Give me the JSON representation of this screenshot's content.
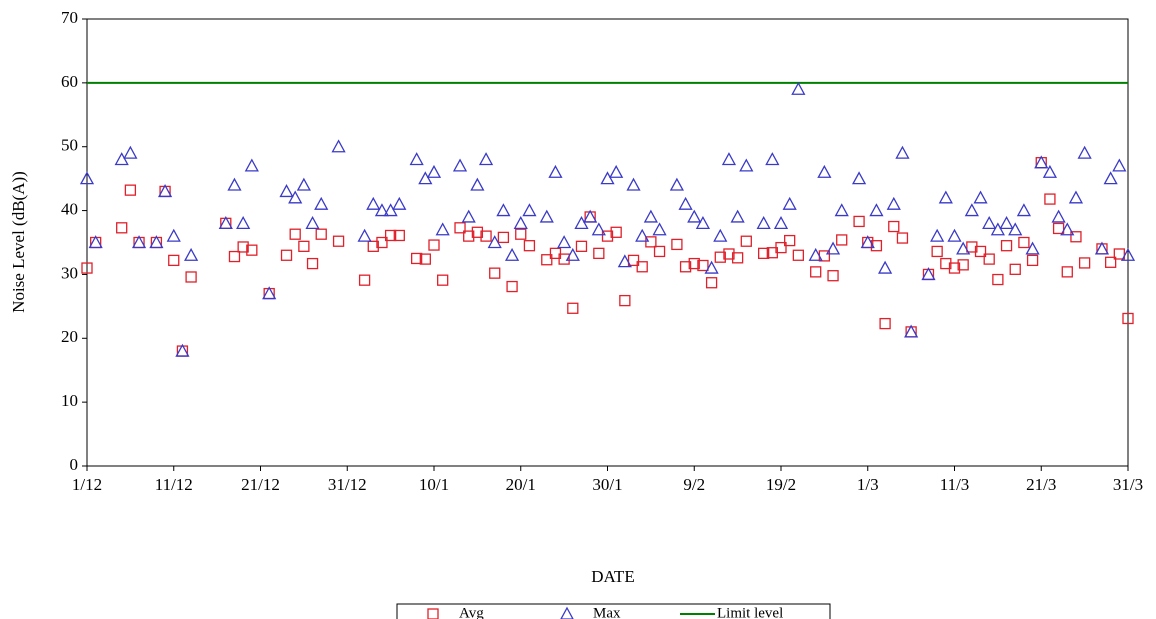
{
  "chart_data": {
    "type": "scatter",
    "x_label": "DATE",
    "y_label": "Noise Level (dB(A))",
    "categories": [
      "1/12",
      null,
      null,
      null,
      null,
      null,
      null,
      null,
      null,
      null,
      "11/12",
      null,
      null,
      null,
      null,
      null,
      null,
      null,
      null,
      null,
      "21/12",
      null,
      null,
      null,
      null,
      null,
      null,
      null,
      null,
      null,
      "31/12",
      null,
      null,
      null,
      null,
      null,
      null,
      null,
      null,
      null,
      "10/1",
      null,
      null,
      null,
      null,
      null,
      null,
      null,
      null,
      null,
      "20/1",
      null,
      null,
      null,
      null,
      null,
      null,
      null,
      null,
      null,
      "30/1",
      null,
      null,
      null,
      null,
      null,
      null,
      null,
      null,
      null,
      "9/2",
      null,
      null,
      null,
      null,
      null,
      null,
      null,
      null,
      null,
      "19/2",
      null,
      null,
      null,
      null,
      null,
      null,
      null,
      null,
      null,
      "1/3",
      null,
      null,
      null,
      null,
      null,
      null,
      null,
      null,
      null,
      "11/3",
      null,
      null,
      null,
      null,
      null,
      null,
      null,
      null,
      null,
      "21/3",
      null,
      null,
      null,
      null,
      null,
      null,
      null,
      null,
      null,
      "31/3"
    ],
    "series": [
      {
        "name": "Avg",
        "color": "#e0202a",
        "marker": "square",
        "values": [
          31,
          35,
          null,
          null,
          37.3,
          43.2,
          35,
          null,
          35,
          43,
          32.2,
          18,
          29.6,
          null,
          null,
          null,
          38,
          32.8,
          34.3,
          33.8,
          null,
          27,
          null,
          33,
          36.3,
          34.4,
          31.7,
          36.3,
          null,
          35.2,
          null,
          null,
          29.1,
          34.4,
          35,
          36.1,
          36.1,
          null,
          32.5,
          32.4,
          34.6,
          29.1,
          null,
          37.3,
          36,
          36.6,
          36,
          30.2,
          35.8,
          28.1,
          36.3,
          34.5,
          null,
          32.3,
          33.3,
          32.4,
          24.7,
          34.4,
          39,
          33.3,
          36,
          36.6,
          25.9,
          32.2,
          31.2,
          35.1,
          33.6,
          null,
          34.7,
          31.2,
          31.7,
          31.4,
          28.7,
          32.7,
          33.2,
          32.6,
          35.2,
          null,
          33.3,
          33.4,
          34.2,
          35.3,
          33,
          null,
          30.4,
          32.9,
          29.8,
          35.4,
          null,
          38.3,
          35,
          34.5,
          22.3,
          37.5,
          35.7,
          21,
          null,
          30,
          33.6,
          31.7,
          31,
          31.5,
          34.3,
          33.6,
          32.4,
          29.2,
          34.5,
          30.8,
          35,
          32.2,
          47.5,
          41.8,
          37.2,
          30.4,
          35.9,
          31.8,
          null,
          34,
          31.9,
          33.2,
          23.1
        ]
      },
      {
        "name": "Max",
        "color": "#3a3ac8",
        "marker": "triangle",
        "values": [
          45,
          35,
          null,
          null,
          48,
          49,
          35,
          null,
          35,
          43,
          36,
          18,
          33,
          null,
          null,
          null,
          38,
          44,
          38,
          47,
          null,
          27,
          null,
          43,
          42,
          44,
          38,
          41,
          null,
          50,
          null,
          null,
          36,
          41,
          40,
          40,
          41,
          null,
          48,
          45,
          46,
          37,
          null,
          47,
          39,
          44,
          48,
          35,
          40,
          33,
          38,
          40,
          null,
          39,
          46,
          35,
          33,
          38,
          39,
          37,
          45,
          46,
          32,
          44,
          36,
          39,
          37,
          null,
          44,
          41,
          39,
          38,
          31,
          36,
          48,
          39,
          47,
          null,
          38,
          48,
          38,
          41,
          59,
          null,
          33,
          46,
          34,
          40,
          null,
          45,
          35,
          40,
          31,
          41,
          49,
          21,
          null,
          30,
          36,
          42,
          36,
          34,
          40,
          42,
          38,
          37,
          38,
          37,
          40,
          34,
          47.5,
          46,
          39,
          37,
          42,
          49,
          null,
          34,
          45,
          47,
          33
        ]
      }
    ],
    "limit": {
      "name": "Limit level",
      "value": 60,
      "color": "#008000"
    },
    "ylim": [
      0,
      70
    ],
    "yticks": [
      0,
      10,
      20,
      30,
      40,
      50,
      60,
      70
    ],
    "legend": "bottom"
  }
}
